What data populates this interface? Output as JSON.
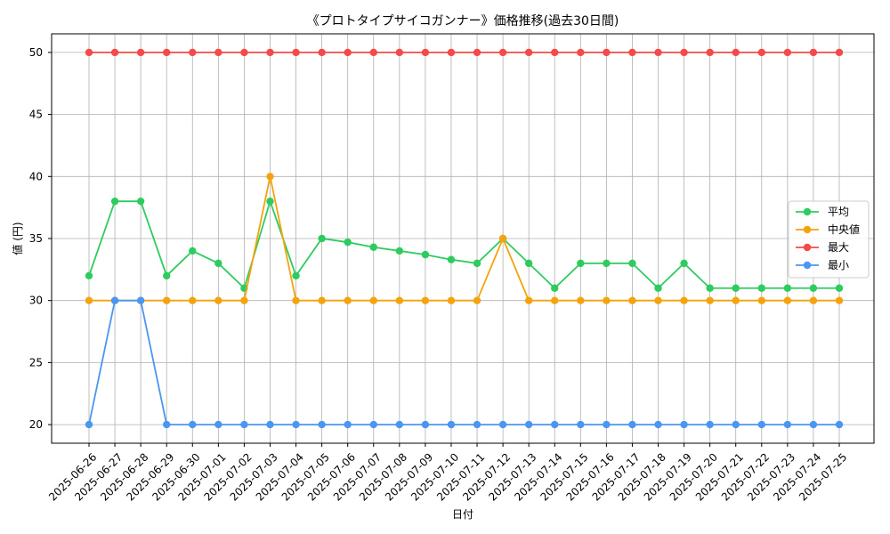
{
  "chart_data": {
    "type": "line",
    "title": "《プロトタイプサイコガンナー》価格推移(過去30日間)",
    "xlabel": "日付",
    "ylabel": "値 (円)",
    "ylim": [
      18.5,
      51.5
    ],
    "yticks": [
      20,
      25,
      30,
      35,
      40,
      45,
      50
    ],
    "grid": true,
    "legend_position": "center-right",
    "categories": [
      "2025-06-26",
      "2025-06-27",
      "2025-06-28",
      "2025-06-29",
      "2025-06-30",
      "2025-07-01",
      "2025-07-02",
      "2025-07-03",
      "2025-07-04",
      "2025-07-05",
      "2025-07-06",
      "2025-07-07",
      "2025-07-08",
      "2025-07-09",
      "2025-07-10",
      "2025-07-11",
      "2025-07-12",
      "2025-07-13",
      "2025-07-14",
      "2025-07-15",
      "2025-07-16",
      "2025-07-17",
      "2025-07-18",
      "2025-07-19",
      "2025-07-20",
      "2025-07-21",
      "2025-07-22",
      "2025-07-23",
      "2025-07-24",
      "2025-07-25"
    ],
    "series": [
      {
        "name": "平均",
        "color": "#2ecc5f",
        "values": [
          32,
          38,
          38,
          32,
          34,
          33,
          31,
          38,
          32,
          35,
          34.7,
          34.3,
          34,
          33.7,
          33.3,
          33,
          35,
          33,
          31,
          33,
          33,
          33,
          31,
          33,
          31,
          31,
          31,
          31,
          31,
          31
        ]
      },
      {
        "name": "中央値",
        "color": "#f5a30c",
        "values": [
          30,
          30,
          30,
          30,
          30,
          30,
          30,
          40,
          30,
          30,
          30,
          30,
          30,
          30,
          30,
          30,
          35,
          30,
          30,
          30,
          30,
          30,
          30,
          30,
          30,
          30,
          30,
          30,
          30,
          30
        ]
      },
      {
        "name": "最大",
        "color": "#f44a4a",
        "values": [
          50,
          50,
          50,
          50,
          50,
          50,
          50,
          50,
          50,
          50,
          50,
          50,
          50,
          50,
          50,
          50,
          50,
          50,
          50,
          50,
          50,
          50,
          50,
          50,
          50,
          50,
          50,
          50,
          50,
          50
        ]
      },
      {
        "name": "最小",
        "color": "#4a96f2",
        "values": [
          20,
          30,
          30,
          20,
          20,
          20,
          20,
          20,
          20,
          20,
          20,
          20,
          20,
          20,
          20,
          20,
          20,
          20,
          20,
          20,
          20,
          20,
          20,
          20,
          20,
          20,
          20,
          20,
          20,
          20
        ]
      }
    ]
  }
}
